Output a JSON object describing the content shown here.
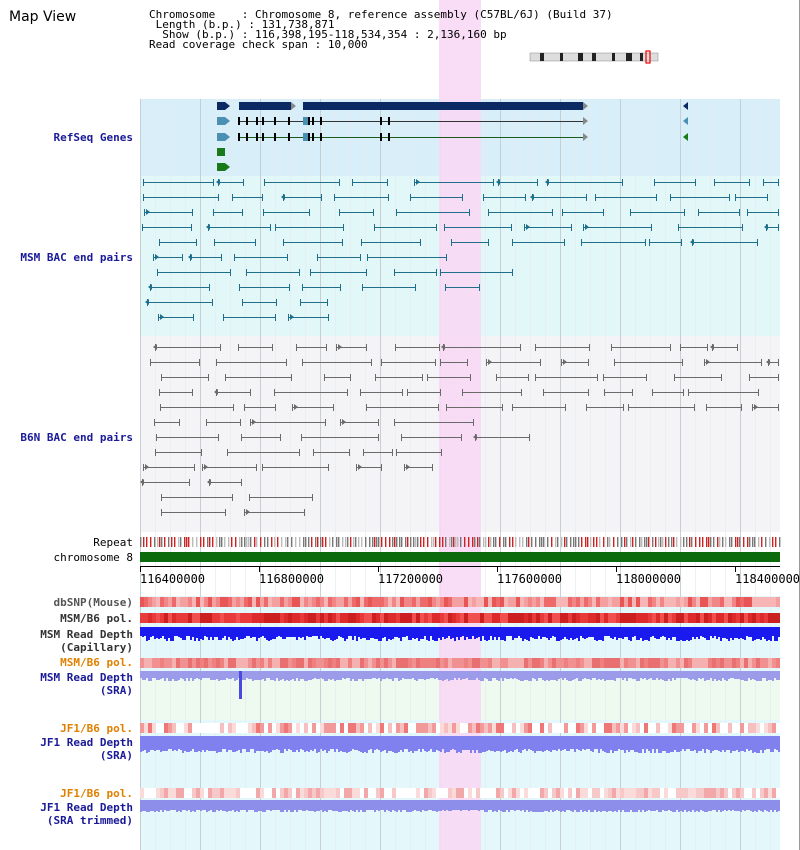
{
  "header": {
    "title": "Map View",
    "chromosome_label": "Chromosome",
    "chromosome_value": "Chromosome 8, reference assembly (C57BL/6J) (Build 37)",
    "length_label": "Length (b.p.)",
    "length_value": "131,738,871",
    "show_label": "Show (b.p.)",
    "show_value": "116,398,195-118,534,354 : 2,136,160 bp",
    "span_label": "Read coverage check span",
    "span_value": "10,000"
  },
  "tracks": {
    "refseq": "RefSeq Genes",
    "msm_bac": "MSM BAC end pairs",
    "b6n_bac": "B6N BAC end pairs",
    "repeat": "Repeat",
    "chromosome": "chromosome 8",
    "dbsnp": "dbSNP(Mouse)",
    "msm_b6_pol": "MSM/B6 pol.",
    "msm_depth_cap_1": "MSM Read Depth",
    "msm_depth_cap_2": "(Capillary)",
    "msm_b6_pol_sra": "MSM/B6 pol.",
    "msm_depth_sra_1": "MSM Read Depth",
    "msm_depth_sra_2": "(SRA)",
    "jf1_pol": "JF1/B6 pol.",
    "jf1_depth_1": "JF1 Read Depth",
    "jf1_depth_2": "(SRA)",
    "jf1_pol_trim": "JF1/B6 pol.",
    "jf1_trim_1": "JF1 Read Depth",
    "jf1_trim_2": "(SRA trimmed)"
  },
  "axis": {
    "ticks": [
      "116400000",
      "116800000",
      "117200000",
      "117600000",
      "118000000",
      "118400000"
    ]
  },
  "colors": {
    "refseq_bg": "#d8eef8",
    "msm_bg": "#e2f8f8",
    "b6n_bg": "#f4f4f6",
    "highlight": "#f8d8f4",
    "refseq_dark": "#0b2a63",
    "refseq_mid": "#4b8fb3",
    "refseq_green": "#1a7a1a",
    "msm_pair": "#1f6f8b",
    "b6n_pair": "#6a6a6a",
    "chromosome": "#0b6a0b",
    "snp": "#ee5555",
    "depth_blue": "#1a1aee",
    "depth_light": "#8080ee",
    "label_navy": "#1a1a99",
    "label_orange": "#e08000",
    "label_gray": "#333333"
  }
}
